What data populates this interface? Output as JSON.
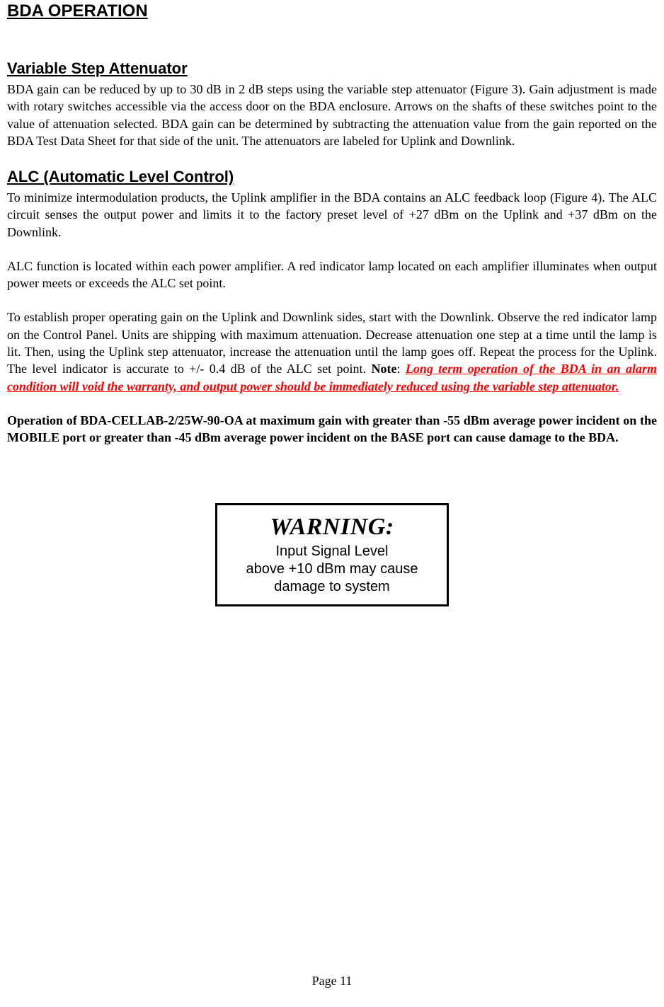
{
  "headings": {
    "main": "BDA OPERATION",
    "section1": "Variable Step Attenuator",
    "section2": "ALC (Automatic Level Control)"
  },
  "paragraphs": {
    "p1": "BDA gain can be reduced by up to 30 dB in 2 dB steps using the variable step attenuator (Figure 3). Gain adjustment is made with rotary switches accessible via the access door on the BDA enclosure. Arrows on the shafts of these switches point to the value of attenuation selected. BDA gain can be determined by subtracting the attenuation value from the gain reported on the BDA Test Data Sheet for that side of the unit.  The attenuators are labeled for Uplink and Downlink.",
    "p2": "To minimize intermodulation products, the Uplink amplifier in the BDA contains an ALC feedback loop (Figure 4). The ALC circuit senses the output power and limits it to the factory preset level of +27 dBm on the Uplink and +37 dBm on the Downlink.",
    "p3": "ALC function is located within each power amplifier. A red indicator lamp located on each amplifier illuminates when output power meets or exceeds the ALC set point.",
    "p4_part1": "To establish proper operating gain on the Uplink and Downlink sides, start with the Downlink. Observe the red indicator lamp on the Control Panel. Units are shipping with maximum attenuation. Decrease attenuation one step at a time until the lamp is lit. Then, using the Uplink step attenuator, increase the attenuation until the lamp goes off. Repeat the process for the Uplink. The level indicator is accurate to +/- 0.4 dB of the ALC set point. ",
    "p4_note_label": "Note",
    "p4_colon": ": ",
    "p4_emphasis": "Long term operation of the BDA in an alarm condition will void the warranty, and output power should be immediately reduced using the variable step attenuator.",
    "p5": "Operation of BDA-CELLAB-2/25W-90-OA at maximum gain with greater than -55 dBm average power incident on the MOBILE port or greater than -45 dBm average power incident on the BASE port can cause damage to the BDA."
  },
  "warning": {
    "title": "WARNING:",
    "line1": "Input Signal Level",
    "line2": "above +10 dBm may cause",
    "line3": "damage to system",
    "border_color": "#000000",
    "bg_color": "#ffffff",
    "title_fontsize": 34,
    "body_fontsize": 20
  },
  "page_number": "Page 11",
  "styles": {
    "body_font": "Times New Roman",
    "heading_font": "Arial",
    "text_color": "#000000",
    "emphasis_color": "#ff0000",
    "background_color": "#ffffff",
    "body_fontsize": 18,
    "main_heading_fontsize": 24,
    "sub_heading_fontsize": 22
  }
}
